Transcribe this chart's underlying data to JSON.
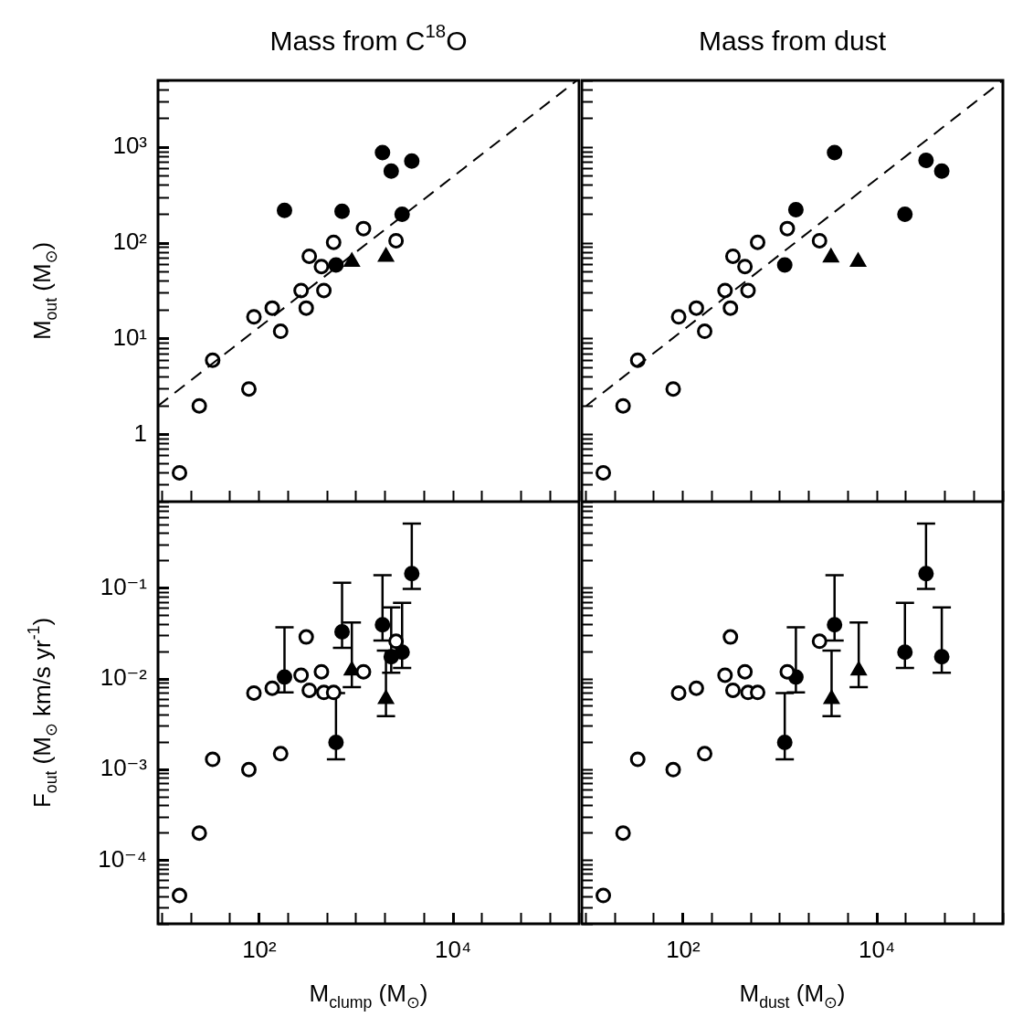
{
  "chart_data": [
    {
      "type": "scatter",
      "title": "Mass from C$^{18}$O",
      "ylabel": "M$_{out}$ (M$_{⊙}$)",
      "log": "xy",
      "legend": false,
      "grid": false,
      "tick_labels": "y",
      "xlim": [
        9,
        200000
      ],
      "ylim": [
        0.2,
        5000
      ],
      "xticks": [
        {
          "value": 10,
          "label": null
        },
        {
          "value": 20,
          "label": null
        },
        {
          "value": 50,
          "label": null
        },
        {
          "value": 100,
          "label": null
        },
        {
          "value": 200,
          "label": null
        },
        {
          "value": 500,
          "label": null
        },
        {
          "value": 1000,
          "label": null
        },
        {
          "value": 2000,
          "label": null
        },
        {
          "value": 5000,
          "label": null
        },
        {
          "value": 10000,
          "label": null
        },
        {
          "value": 20000,
          "label": null
        },
        {
          "value": 50000,
          "label": null
        },
        {
          "value": 100000,
          "label": null
        },
        {
          "value": 200000,
          "label": null
        }
      ],
      "yticks": [
        {
          "value": 0.2,
          "label": null
        },
        {
          "value": 0.3,
          "label": null
        },
        {
          "value": 0.4,
          "label": null
        },
        {
          "value": 0.5,
          "label": null
        },
        {
          "value": 0.6,
          "label": null
        },
        {
          "value": 0.7,
          "label": null
        },
        {
          "value": 0.8,
          "label": null
        },
        {
          "value": 0.9,
          "label": null
        },
        {
          "value": 1,
          "label": "1"
        },
        {
          "value": 2,
          "label": null
        },
        {
          "value": 3,
          "label": null
        },
        {
          "value": 4,
          "label": null
        },
        {
          "value": 5,
          "label": null
        },
        {
          "value": 6,
          "label": null
        },
        {
          "value": 7,
          "label": null
        },
        {
          "value": 8,
          "label": null
        },
        {
          "value": 9,
          "label": null
        },
        {
          "value": 10,
          "label": "10¹"
        },
        {
          "value": 20,
          "label": null
        },
        {
          "value": 30,
          "label": null
        },
        {
          "value": 40,
          "label": null
        },
        {
          "value": 50,
          "label": null
        },
        {
          "value": 60,
          "label": null
        },
        {
          "value": 70,
          "label": null
        },
        {
          "value": 80,
          "label": null
        },
        {
          "value": 90,
          "label": null
        },
        {
          "value": 100,
          "label": "10²"
        },
        {
          "value": 200,
          "label": null
        },
        {
          "value": 300,
          "label": null
        },
        {
          "value": 400,
          "label": null
        },
        {
          "value": 500,
          "label": null
        },
        {
          "value": 600,
          "label": null
        },
        {
          "value": 700,
          "label": null
        },
        {
          "value": 800,
          "label": null
        },
        {
          "value": 900,
          "label": null
        },
        {
          "value": 1000,
          "label": "10³"
        },
        {
          "value": 2000,
          "label": null
        },
        {
          "value": 3000,
          "label": null
        },
        {
          "value": 4000,
          "label": null
        },
        {
          "value": 5000,
          "label": null
        }
      ],
      "series": [
        {
          "type": "line",
          "marker": "none",
          "line_style": "dashed",
          "color": "#000000",
          "x": [
            9,
            190000
          ],
          "values": [
            2,
            5000
          ]
        },
        {
          "type": "scatter",
          "marker": "circle",
          "color": "#ffffff",
          "x": [
            15,
            24,
            33,
            78,
            88,
            136,
            166,
            270,
            305,
            328,
            438,
            464,
            585,
            1190,
            2580
          ],
          "values": [
            0.4,
            2,
            6,
            3,
            17,
            21,
            12,
            32,
            21,
            73,
            57,
            32,
            102,
            142,
            106
          ]
        },
        {
          "type": "scatter",
          "marker": "circle",
          "color": "#000000",
          "x": [
            182,
            619,
            715,
            1870,
            2300,
            3750,
            2980
          ],
          "values": [
            220,
            59,
            215,
            883,
            565,
            720,
            200
          ]
        },
        {
          "type": "scatter",
          "marker": "triangle",
          "color": "#000000",
          "x": [
            902,
            2030
          ],
          "values": [
            64,
            72
          ]
        }
      ]
    },
    {
      "type": "scatter",
      "title": "Mass from dust",
      "log": "xy",
      "legend": false,
      "grid": false,
      "tick_labels": false,
      "xlim": [
        9,
        200000
      ],
      "ylim": [
        0.2,
        5000
      ],
      "xticks": [
        {
          "value": 10,
          "label": null
        },
        {
          "value": 20,
          "label": null
        },
        {
          "value": 50,
          "label": null
        },
        {
          "value": 100,
          "label": null
        },
        {
          "value": 200,
          "label": null
        },
        {
          "value": 500,
          "label": null
        },
        {
          "value": 1000,
          "label": null
        },
        {
          "value": 2000,
          "label": null
        },
        {
          "value": 5000,
          "label": null
        },
        {
          "value": 10000,
          "label": null
        },
        {
          "value": 20000,
          "label": null
        },
        {
          "value": 50000,
          "label": null
        },
        {
          "value": 100000,
          "label": null
        },
        {
          "value": 200000,
          "label": null
        }
      ],
      "yticks": [
        {
          "value": 0.2,
          "label": null
        },
        {
          "value": 0.3,
          "label": null
        },
        {
          "value": 0.4,
          "label": null
        },
        {
          "value": 0.5,
          "label": null
        },
        {
          "value": 0.6,
          "label": null
        },
        {
          "value": 0.7,
          "label": null
        },
        {
          "value": 0.8,
          "label": null
        },
        {
          "value": 0.9,
          "label": null
        },
        {
          "value": 1,
          "label": null
        },
        {
          "value": 2,
          "label": null
        },
        {
          "value": 3,
          "label": null
        },
        {
          "value": 4,
          "label": null
        },
        {
          "value": 5,
          "label": null
        },
        {
          "value": 6,
          "label": null
        },
        {
          "value": 7,
          "label": null
        },
        {
          "value": 8,
          "label": null
        },
        {
          "value": 9,
          "label": null
        },
        {
          "value": 10,
          "label": null
        },
        {
          "value": 20,
          "label": null
        },
        {
          "value": 30,
          "label": null
        },
        {
          "value": 40,
          "label": null
        },
        {
          "value": 50,
          "label": null
        },
        {
          "value": 60,
          "label": null
        },
        {
          "value": 70,
          "label": null
        },
        {
          "value": 80,
          "label": null
        },
        {
          "value": 90,
          "label": null
        },
        {
          "value": 100,
          "label": null
        },
        {
          "value": 200,
          "label": null
        },
        {
          "value": 300,
          "label": null
        },
        {
          "value": 400,
          "label": null
        },
        {
          "value": 500,
          "label": null
        },
        {
          "value": 600,
          "label": null
        },
        {
          "value": 700,
          "label": null
        },
        {
          "value": 800,
          "label": null
        },
        {
          "value": 900,
          "label": null
        },
        {
          "value": 1000,
          "label": null
        },
        {
          "value": 2000,
          "label": null
        },
        {
          "value": 3000,
          "label": null
        },
        {
          "value": 4000,
          "label": null
        },
        {
          "value": 5000,
          "label": null
        }
      ],
      "series": [
        {
          "type": "line",
          "marker": "none",
          "line_style": "dashed",
          "color": "#000000",
          "x": [
            10,
            200000
          ],
          "values": [
            2,
            5000
          ]
        },
        {
          "type": "scatter",
          "marker": "circle",
          "color": "#ffffff",
          "x": [
            15,
            24,
            34,
            79,
            90,
            137,
            167,
            271,
            308,
            327,
            435,
            468,
            588,
            1190,
            2560
          ],
          "values": [
            0.4,
            2,
            6,
            3,
            17,
            21,
            12,
            32,
            21,
            73,
            57,
            32,
            102,
            142,
            106
          ]
        },
        {
          "type": "scatter",
          "marker": "circle",
          "color": "#000000",
          "x": [
            1460,
            1120,
            3660,
            46800,
            32200,
            19500
          ],
          "values": [
            223,
            59,
            883,
            565,
            730,
            200
          ]
        },
        {
          "type": "scatter",
          "marker": "triangle",
          "color": "#000000",
          "x": [
            6410,
            3360
          ],
          "values": [
            64,
            71
          ]
        }
      ]
    },
    {
      "type": "scatter",
      "xlabel": "M$_{clump}$ (M$_{⊙}$)",
      "ylabel": "F$_{out}$ (M$_{⊙}$ km/s yr$^{-1}$)",
      "log": "xy",
      "legend": false,
      "grid": false,
      "xlim": [
        9,
        200000
      ],
      "ylim": [
        2e-05,
        0.9
      ],
      "xticks": [
        {
          "value": 10,
          "label": null
        },
        {
          "value": 20,
          "label": null
        },
        {
          "value": 50,
          "label": null
        },
        {
          "value": 100,
          "label": "10²"
        },
        {
          "value": 200,
          "label": null
        },
        {
          "value": 500,
          "label": null
        },
        {
          "value": 1000,
          "label": null
        },
        {
          "value": 2000,
          "label": null
        },
        {
          "value": 5000,
          "label": null
        },
        {
          "value": 10000,
          "label": "10⁴"
        },
        {
          "value": 20000,
          "label": null
        },
        {
          "value": 50000,
          "label": null
        },
        {
          "value": 100000,
          "label": null
        },
        {
          "value": 200000,
          "label": null
        }
      ],
      "yticks": [
        {
          "value": 2e-05,
          "label": null
        },
        {
          "value": 3e-05,
          "label": null
        },
        {
          "value": 4e-05,
          "label": null
        },
        {
          "value": 5e-05,
          "label": null
        },
        {
          "value": 6e-05,
          "label": null
        },
        {
          "value": 7e-05,
          "label": null
        },
        {
          "value": 8e-05,
          "label": null
        },
        {
          "value": 9e-05,
          "label": null
        },
        {
          "value": 0.0001,
          "label": "10⁻⁴"
        },
        {
          "value": 0.0002,
          "label": null
        },
        {
          "value": 0.0003,
          "label": null
        },
        {
          "value": 0.0004,
          "label": null
        },
        {
          "value": 0.0005,
          "label": null
        },
        {
          "value": 0.0006,
          "label": null
        },
        {
          "value": 0.0007,
          "label": null
        },
        {
          "value": 0.0008,
          "label": null
        },
        {
          "value": 0.0009,
          "label": null
        },
        {
          "value": 0.001,
          "label": "10⁻³"
        },
        {
          "value": 0.002,
          "label": null
        },
        {
          "value": 0.003,
          "label": null
        },
        {
          "value": 0.004,
          "label": null
        },
        {
          "value": 0.005,
          "label": null
        },
        {
          "value": 0.006,
          "label": null
        },
        {
          "value": 0.007,
          "label": null
        },
        {
          "value": 0.008,
          "label": null
        },
        {
          "value": 0.009,
          "label": null
        },
        {
          "value": 0.01,
          "label": "10⁻²"
        },
        {
          "value": 0.02,
          "label": null
        },
        {
          "value": 0.03,
          "label": null
        },
        {
          "value": 0.04,
          "label": null
        },
        {
          "value": 0.05,
          "label": null
        },
        {
          "value": 0.06,
          "label": null
        },
        {
          "value": 0.07,
          "label": null
        },
        {
          "value": 0.08,
          "label": null
        },
        {
          "value": 0.09,
          "label": null
        },
        {
          "value": 0.1,
          "label": "10⁻¹"
        },
        {
          "value": 0.2,
          "label": null
        },
        {
          "value": 0.3,
          "label": null
        },
        {
          "value": 0.4,
          "label": null
        },
        {
          "value": 0.5,
          "label": null
        },
        {
          "value": 0.6,
          "label": null
        },
        {
          "value": 0.7,
          "label": null
        },
        {
          "value": 0.8,
          "label": null
        },
        {
          "value": 0.9,
          "label": null
        }
      ],
      "series": [
        {
          "type": "scatter",
          "marker": "circle",
          "color": "#ffffff",
          "x": [
            15,
            24,
            33,
            78,
            88,
            136,
            166,
            270,
            305,
            328,
            438,
            464,
            585,
            1190,
            2580
          ],
          "values": [
            4.1e-05,
            0.0002,
            0.0013,
            0.001,
            0.007,
            0.0079,
            0.0015,
            0.011,
            0.029,
            0.0075,
            0.012,
            0.0071,
            0.0071,
            0.012,
            0.026
          ]
        },
        {
          "type": "scatter",
          "marker": "circle",
          "color": "#000000",
          "x": [
            182,
            619,
            715,
            1870,
            2300,
            3750,
            2980
          ],
          "values": [
            0.0105,
            0.002,
            0.033,
            0.0395,
            0.0176,
            0.145,
            0.0197
          ],
          "errors": [
            [
              0.0071,
              0.037
            ],
            [
              0.0013,
              0.007
            ],
            [
              0.022,
              0.115
            ],
            [
              0.0265,
              0.139
            ],
            [
              0.0117,
              0.0615
            ],
            [
              0.098,
              0.515
            ],
            [
              0.0132,
              0.069
            ]
          ]
        },
        {
          "type": "scatter",
          "marker": "triangle",
          "color": "#000000",
          "x": [
            902,
            2030
          ],
          "values": [
            0.0124,
            0.006
          ],
          "errors": [
            [
              0.0081,
              0.042
            ],
            [
              0.0039,
              0.0205
            ]
          ]
        }
      ]
    },
    {
      "type": "scatter",
      "xlabel": "M$_{dust}$ (M$_{⊙}$)",
      "log": "xy",
      "legend": false,
      "grid": false,
      "tick_labels": "x",
      "xlim": [
        9,
        200000
      ],
      "ylim": [
        2e-05,
        0.9
      ],
      "xticks": [
        {
          "value": 10,
          "label": null
        },
        {
          "value": 20,
          "label": null
        },
        {
          "value": 50,
          "label": null
        },
        {
          "value": 100,
          "label": "10²"
        },
        {
          "value": 200,
          "label": null
        },
        {
          "value": 500,
          "label": null
        },
        {
          "value": 1000,
          "label": null
        },
        {
          "value": 2000,
          "label": null
        },
        {
          "value": 5000,
          "label": null
        },
        {
          "value": 10000,
          "label": "10⁴"
        },
        {
          "value": 20000,
          "label": null
        },
        {
          "value": 50000,
          "label": null
        },
        {
          "value": 100000,
          "label": null
        },
        {
          "value": 200000,
          "label": null
        }
      ],
      "yticks": [
        {
          "value": 2e-05,
          "label": null
        },
        {
          "value": 3e-05,
          "label": null
        },
        {
          "value": 4e-05,
          "label": null
        },
        {
          "value": 5e-05,
          "label": null
        },
        {
          "value": 6e-05,
          "label": null
        },
        {
          "value": 7e-05,
          "label": null
        },
        {
          "value": 8e-05,
          "label": null
        },
        {
          "value": 9e-05,
          "label": null
        },
        {
          "value": 0.0001,
          "label": null
        },
        {
          "value": 0.0002,
          "label": null
        },
        {
          "value": 0.0003,
          "label": null
        },
        {
          "value": 0.0004,
          "label": null
        },
        {
          "value": 0.0005,
          "label": null
        },
        {
          "value": 0.0006,
          "label": null
        },
        {
          "value": 0.0007,
          "label": null
        },
        {
          "value": 0.0008,
          "label": null
        },
        {
          "value": 0.0009,
          "label": null
        },
        {
          "value": 0.001,
          "label": null
        },
        {
          "value": 0.002,
          "label": null
        },
        {
          "value": 0.003,
          "label": null
        },
        {
          "value": 0.004,
          "label": null
        },
        {
          "value": 0.005,
          "label": null
        },
        {
          "value": 0.006,
          "label": null
        },
        {
          "value": 0.007,
          "label": null
        },
        {
          "value": 0.008,
          "label": null
        },
        {
          "value": 0.009,
          "label": null
        },
        {
          "value": 0.01,
          "label": null
        },
        {
          "value": 0.02,
          "label": null
        },
        {
          "value": 0.03,
          "label": null
        },
        {
          "value": 0.04,
          "label": null
        },
        {
          "value": 0.05,
          "label": null
        },
        {
          "value": 0.06,
          "label": null
        },
        {
          "value": 0.07,
          "label": null
        },
        {
          "value": 0.08,
          "label": null
        },
        {
          "value": 0.09,
          "label": null
        },
        {
          "value": 0.1,
          "label": null
        },
        {
          "value": 0.2,
          "label": null
        },
        {
          "value": 0.3,
          "label": null
        },
        {
          "value": 0.4,
          "label": null
        },
        {
          "value": 0.5,
          "label": null
        },
        {
          "value": 0.6,
          "label": null
        },
        {
          "value": 0.7,
          "label": null
        },
        {
          "value": 0.8,
          "label": null
        },
        {
          "value": 0.9,
          "label": null
        }
      ],
      "series": [
        {
          "type": "scatter",
          "marker": "circle",
          "color": "#ffffff",
          "x": [
            15,
            24,
            34,
            79,
            90,
            137,
            167,
            271,
            308,
            327,
            435,
            468,
            588,
            1190,
            2560
          ],
          "values": [
            4.1e-05,
            0.0002,
            0.0013,
            0.001,
            0.007,
            0.0079,
            0.0015,
            0.011,
            0.029,
            0.0075,
            0.012,
            0.0071,
            0.0071,
            0.012,
            0.026
          ]
        },
        {
          "type": "scatter",
          "marker": "circle",
          "color": "#000000",
          "x": [
            1460,
            1120,
            3660,
            46800,
            32200,
            19500
          ],
          "values": [
            0.0105,
            0.002,
            0.0395,
            0.0176,
            0.145,
            0.0197
          ],
          "errors": [
            [
              0.0071,
              0.037
            ],
            [
              0.0013,
              0.007
            ],
            [
              0.0265,
              0.139
            ],
            [
              0.0117,
              0.0615
            ],
            [
              0.098,
              0.515
            ],
            [
              0.0132,
              0.069
            ]
          ]
        },
        {
          "type": "scatter",
          "marker": "triangle",
          "color": "#000000",
          "x": [
            6500,
            3410
          ],
          "values": [
            0.0124,
            0.006
          ],
          "errors": [
            [
              0.0081,
              0.042
            ],
            [
              0.0039,
              0.0205
            ]
          ]
        }
      ]
    }
  ]
}
